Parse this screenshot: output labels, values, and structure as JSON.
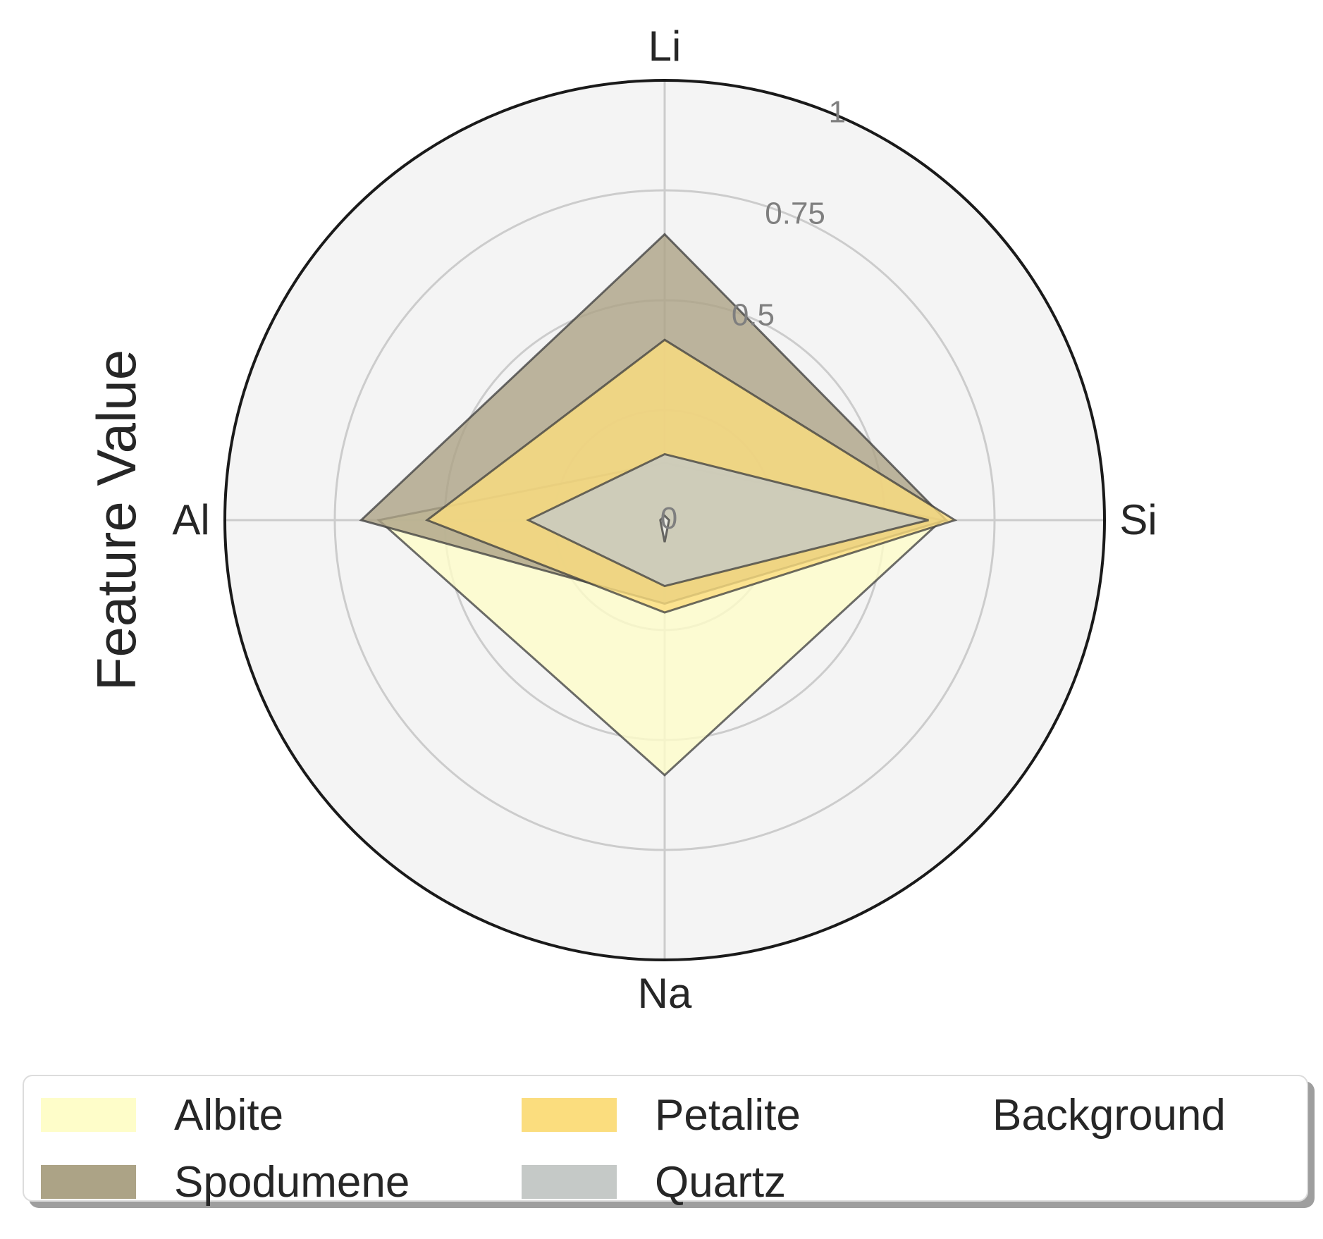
{
  "chart_data": {
    "type": "radar",
    "ylabel": "Feature Value",
    "axes": [
      "Li",
      "Si",
      "Na",
      "Al"
    ],
    "rlim": [
      0,
      1
    ],
    "r_ticks": [
      0,
      0.25,
      0.5,
      0.75,
      1
    ],
    "r_tick_labels": [
      "0",
      "",
      "0.5",
      "0.75",
      "1"
    ],
    "grid": true,
    "legend_placement": "bottom",
    "series": [
      {
        "name": "Albite",
        "values": [
          0.13,
          0.63,
          0.58,
          0.65
        ],
        "color": "#fefdc9"
      },
      {
        "name": "Spodumene",
        "values": [
          0.65,
          0.64,
          0.19,
          0.69
        ],
        "color": "#aca386"
      },
      {
        "name": "Petalite",
        "values": [
          0.41,
          0.66,
          0.21,
          0.54
        ],
        "color": "#fbdd7e"
      },
      {
        "name": "Quartz",
        "values": [
          0.15,
          0.6,
          0.15,
          0.31
        ],
        "color": "#c5c9c7"
      },
      {
        "name": "Background",
        "values": [
          0.01,
          0.01,
          0.05,
          0.01
        ],
        "color": "#ffffff"
      }
    ]
  }
}
